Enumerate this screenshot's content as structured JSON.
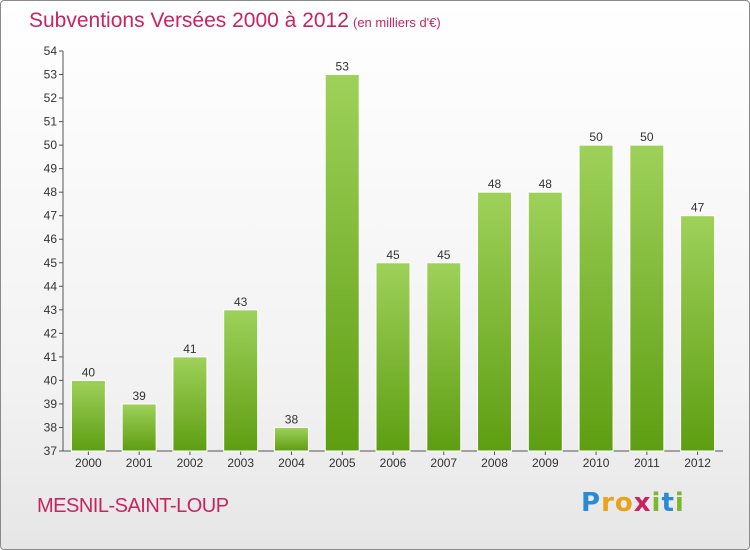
{
  "header": {
    "title": "Subventions Versées 2000 à 2012",
    "unit_note": "(en milliers d'€)"
  },
  "footer": {
    "commune": "MESNIL-SAINT-LOUP",
    "brand_letters": [
      "P",
      "r",
      "o",
      "x",
      "i",
      "t",
      "i"
    ]
  },
  "colors": {
    "title": "#c8245f",
    "bar_top": "#9ed15a",
    "bar_bottom": "#5e9e12"
  },
  "chart_data": {
    "type": "bar",
    "title": "Subventions Versées 2000 à 2012",
    "subtitle": "(en milliers d'€)",
    "xlabel": "",
    "ylabel": "",
    "categories": [
      "2000",
      "2001",
      "2002",
      "2003",
      "2004",
      "2005",
      "2006",
      "2007",
      "2008",
      "2009",
      "2010",
      "2011",
      "2012"
    ],
    "values": [
      40,
      39,
      41,
      43,
      38,
      53,
      45,
      45,
      48,
      48,
      50,
      50,
      47
    ],
    "ylim": [
      37,
      54
    ],
    "yticks": [
      37,
      38,
      39,
      40,
      41,
      42,
      43,
      44,
      45,
      46,
      47,
      48,
      49,
      50,
      51,
      52,
      53,
      54
    ],
    "data_labels": true,
    "grid": false
  }
}
